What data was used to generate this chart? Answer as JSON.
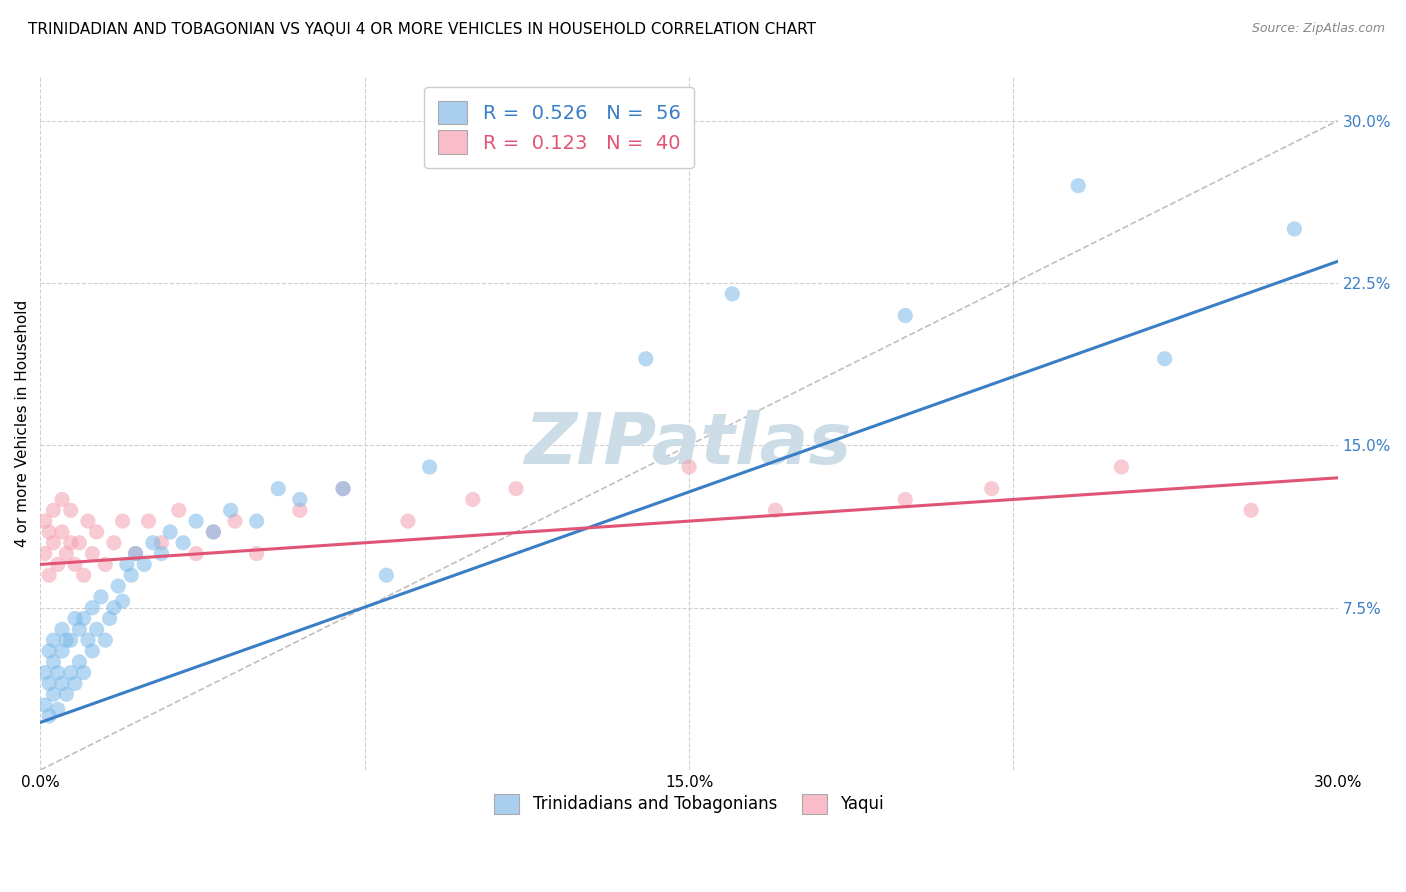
{
  "title": "TRINIDADIAN AND TOBAGONIAN VS YAQUI 4 OR MORE VEHICLES IN HOUSEHOLD CORRELATION CHART",
  "source": "Source: ZipAtlas.com",
  "ylabel_label": "4 or more Vehicles in Household",
  "xlim": [
    0.0,
    0.3
  ],
  "ylim": [
    0.0,
    0.32
  ],
  "xticks": [
    0.0,
    0.075,
    0.15,
    0.225,
    0.3
  ],
  "xticklabels": [
    "0.0%",
    "",
    "15.0%",
    "",
    "30.0%"
  ],
  "yticks": [
    0.075,
    0.15,
    0.225,
    0.3
  ],
  "yticklabels": [
    "7.5%",
    "15.0%",
    "22.5%",
    "30.0%"
  ],
  "blue_R": 0.526,
  "blue_N": 56,
  "pink_R": 0.123,
  "pink_N": 40,
  "blue_color": "#7ab8e8",
  "pink_color": "#f4a0b0",
  "legend_blue_patch": "#aacfee",
  "legend_pink_patch": "#f9bcc8",
  "blue_line_color": "#3a7ec6",
  "pink_line_color": "#e05575",
  "trend_line_color": "#c0c0c0",
  "grid_color": "#d0d0d0",
  "background_color": "#ffffff",
  "blue_x": [
    0.001,
    0.001,
    0.002,
    0.002,
    0.002,
    0.003,
    0.003,
    0.003,
    0.004,
    0.004,
    0.005,
    0.005,
    0.005,
    0.006,
    0.006,
    0.007,
    0.007,
    0.008,
    0.008,
    0.009,
    0.009,
    0.01,
    0.01,
    0.011,
    0.012,
    0.012,
    0.013,
    0.014,
    0.015,
    0.016,
    0.017,
    0.018,
    0.019,
    0.02,
    0.021,
    0.022,
    0.024,
    0.026,
    0.028,
    0.03,
    0.033,
    0.036,
    0.04,
    0.044,
    0.05,
    0.055,
    0.06,
    0.07,
    0.08,
    0.09,
    0.14,
    0.16,
    0.2,
    0.24,
    0.26,
    0.29
  ],
  "blue_y": [
    0.03,
    0.045,
    0.025,
    0.04,
    0.055,
    0.035,
    0.05,
    0.06,
    0.028,
    0.045,
    0.04,
    0.055,
    0.065,
    0.035,
    0.06,
    0.045,
    0.06,
    0.04,
    0.07,
    0.05,
    0.065,
    0.045,
    0.07,
    0.06,
    0.055,
    0.075,
    0.065,
    0.08,
    0.06,
    0.07,
    0.075,
    0.085,
    0.078,
    0.095,
    0.09,
    0.1,
    0.095,
    0.105,
    0.1,
    0.11,
    0.105,
    0.115,
    0.11,
    0.12,
    0.115,
    0.13,
    0.125,
    0.13,
    0.09,
    0.14,
    0.19,
    0.22,
    0.21,
    0.27,
    0.19,
    0.25
  ],
  "pink_x": [
    0.001,
    0.001,
    0.002,
    0.002,
    0.003,
    0.003,
    0.004,
    0.005,
    0.005,
    0.006,
    0.007,
    0.007,
    0.008,
    0.009,
    0.01,
    0.011,
    0.012,
    0.013,
    0.015,
    0.017,
    0.019,
    0.022,
    0.025,
    0.028,
    0.032,
    0.036,
    0.04,
    0.045,
    0.05,
    0.06,
    0.07,
    0.085,
    0.1,
    0.11,
    0.15,
    0.17,
    0.2,
    0.22,
    0.25,
    0.28
  ],
  "pink_y": [
    0.1,
    0.115,
    0.09,
    0.11,
    0.105,
    0.12,
    0.095,
    0.11,
    0.125,
    0.1,
    0.105,
    0.12,
    0.095,
    0.105,
    0.09,
    0.115,
    0.1,
    0.11,
    0.095,
    0.105,
    0.115,
    0.1,
    0.115,
    0.105,
    0.12,
    0.1,
    0.11,
    0.115,
    0.1,
    0.12,
    0.13,
    0.115,
    0.125,
    0.13,
    0.14,
    0.12,
    0.125,
    0.13,
    0.14,
    0.12
  ],
  "blue_line_x0": 0.0,
  "blue_line_x1": 0.3,
  "blue_line_y0": 0.022,
  "blue_line_y1": 0.235,
  "pink_line_x0": 0.0,
  "pink_line_x1": 0.3,
  "pink_line_y0": 0.095,
  "pink_line_y1": 0.135,
  "watermark": "ZIPatlas",
  "watermark_color": "#ccdde8",
  "marker_size": 120,
  "marker_alpha": 0.55,
  "title_fontsize": 11,
  "axis_label_fontsize": 11,
  "tick_fontsize": 11,
  "legend_fontsize": 14
}
